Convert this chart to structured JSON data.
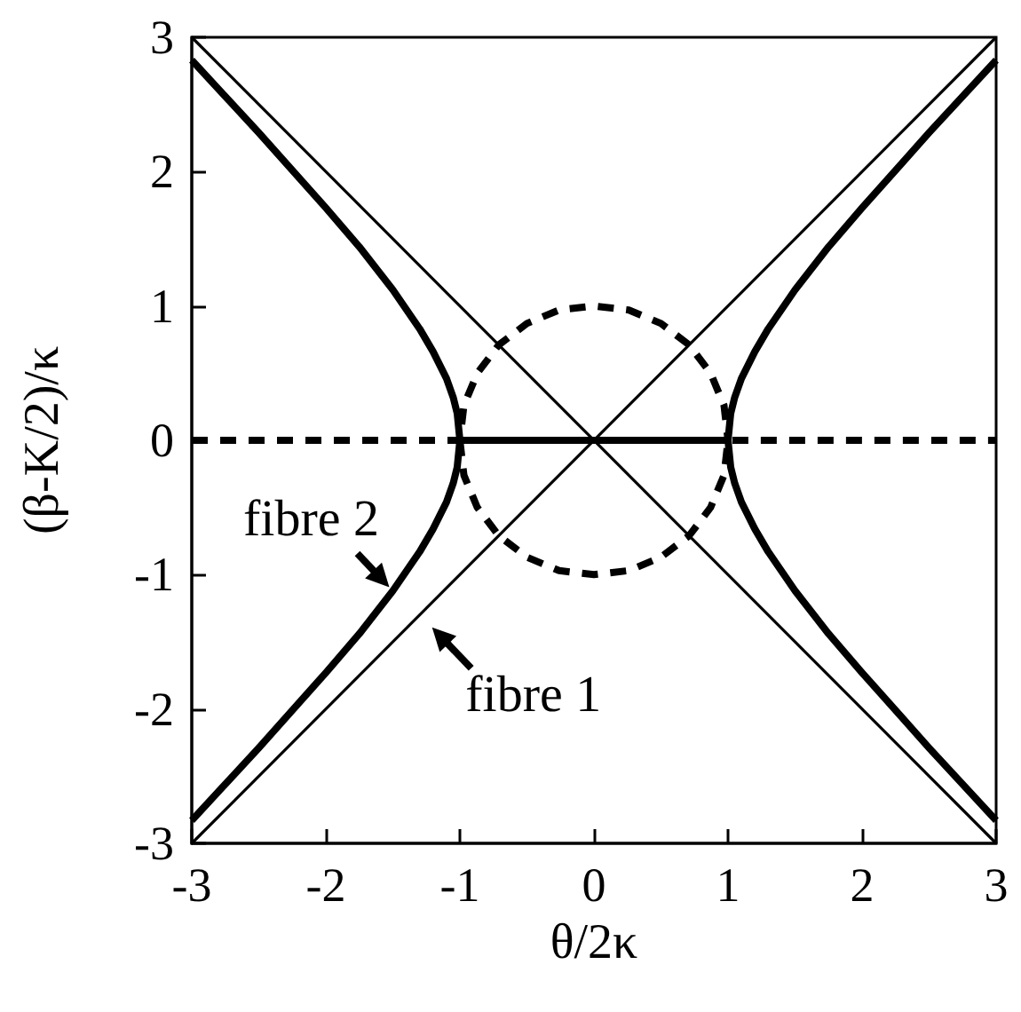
{
  "chart_data": {
    "type": "line",
    "xlabel": "θ/2κ",
    "ylabel": "(β-K/2)/κ",
    "xlim": [
      -3,
      3
    ],
    "ylim": [
      -3,
      3
    ],
    "xticks": [
      -3,
      -2,
      -1,
      0,
      1,
      2,
      3
    ],
    "yticks": [
      -3,
      -2,
      -1,
      0,
      1,
      2,
      3
    ],
    "marker": "none",
    "series": [
      {
        "color": "#000000",
        "line_style": "solid",
        "x": [
          -3,
          3
        ],
        "values": [
          -3,
          3
        ]
      },
      {
        "color": "#000000",
        "line_style": "solid",
        "x": [
          -3,
          3
        ],
        "values": [
          3,
          -3
        ]
      },
      {
        "color": "#000000",
        "line_style": "solid",
        "x": [
          -3,
          -2.5,
          -2,
          -1.75,
          -1.5,
          -1.3,
          -1.2,
          -1.1,
          -1.05,
          -1.02,
          -1,
          1,
          1.02,
          1.05,
          1.1,
          1.2,
          1.3,
          1.5,
          1.75,
          2,
          2.5,
          3
        ],
        "values": [
          2.83,
          2.29,
          1.73,
          1.44,
          1.12,
          0.83,
          0.66,
          0.46,
          0.32,
          0.2,
          0,
          0,
          0.2,
          0.32,
          0.46,
          0.66,
          0.83,
          1.12,
          1.44,
          1.73,
          2.29,
          2.83
        ]
      },
      {
        "color": "#000000",
        "line_style": "solid",
        "x": [
          -3,
          -2.5,
          -2,
          -1.75,
          -1.5,
          -1.3,
          -1.2,
          -1.1,
          -1.05,
          -1.02,
          -1,
          0,
          1,
          1.02,
          1.05,
          1.1,
          1.2,
          1.3,
          1.5,
          1.75,
          2,
          2.5,
          3
        ],
        "values": [
          -2.83,
          -2.29,
          -1.73,
          -1.44,
          -1.12,
          -0.83,
          -0.66,
          -0.46,
          -0.32,
          -0.2,
          0,
          null,
          0,
          -0.2,
          -0.32,
          -0.46,
          -0.66,
          -0.83,
          -1.12,
          -1.44,
          -1.73,
          -2.29,
          -2.83
        ]
      },
      {
        "color": "#000000",
        "line_style": "dashed",
        "x": [
          -3,
          -1,
          -0.97,
          -0.87,
          -0.71,
          -0.5,
          -0.26,
          0,
          0.26,
          0.5,
          0.71,
          0.87,
          0.97,
          1
        ],
        "values": [
          0,
          0,
          0.26,
          0.5,
          0.71,
          0.87,
          0.97,
          1,
          0.97,
          0.87,
          0.71,
          0.5,
          0.26,
          0
        ]
      },
      {
        "color": "#000000",
        "line_style": "dashed",
        "x": [
          -1,
          -0.97,
          -0.87,
          -0.71,
          -0.5,
          -0.26,
          0,
          0.26,
          0.5,
          0.71,
          0.87,
          0.97,
          1,
          3
        ],
        "values": [
          0,
          -0.26,
          -0.5,
          -0.71,
          -0.87,
          -0.97,
          -1,
          -0.97,
          -0.87,
          -0.71,
          -0.5,
          -0.26,
          0,
          0
        ]
      }
    ],
    "annotations": [
      {
        "text": "fibre 2",
        "x": -1.5,
        "y": -1.12
      },
      {
        "text": "fibre 1",
        "x": -1.3,
        "y": -1.3
      }
    ]
  }
}
